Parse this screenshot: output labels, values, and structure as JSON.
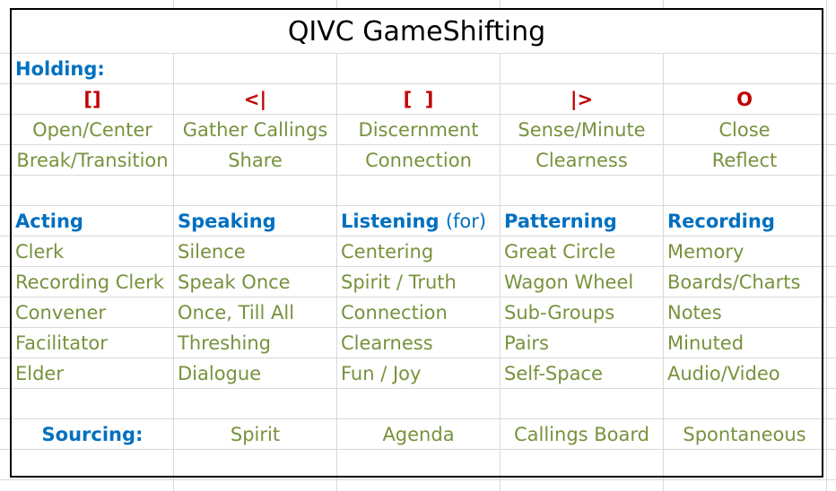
{
  "title": "QIVC GameShifting",
  "holding": {
    "label": "Holding:",
    "symbols": [
      "[]",
      "<|",
      "[  ]",
      "|>",
      "O"
    ],
    "row1": [
      "Open/Center",
      "Gather Callings",
      "Discernment",
      "Sense/Minute",
      "Close"
    ],
    "row2": [
      "Break/Transition",
      "Share",
      "Connection",
      "Clearness",
      "Reflect"
    ]
  },
  "categories": {
    "acting": "Acting",
    "speaking": "Speaking",
    "listening": "Listening",
    "listening_suffix": "(for)",
    "patterning": "Patterning",
    "recording": "Recording"
  },
  "rows": [
    [
      "Clerk",
      "Silence",
      "Centering",
      "Great Circle",
      "Memory"
    ],
    [
      "Recording Clerk",
      "Speak Once",
      "Spirit / Truth",
      "Wagon Wheel",
      "Boards/Charts"
    ],
    [
      "Convener",
      "Once, Till All",
      "Connection",
      "Sub-Groups",
      "Notes"
    ],
    [
      "Facilitator",
      "Threshing",
      "Clearness",
      "Pairs",
      "Minuted"
    ],
    [
      "Elder",
      "Dialogue",
      "Fun / Joy",
      "Self-Space",
      "Audio/Video"
    ]
  ],
  "sourcing": {
    "label": "Sourcing:",
    "items": [
      "Spirit",
      "Agenda",
      "Callings Board",
      "Spontaneous"
    ]
  },
  "colors": {
    "olive": "#77923c",
    "blue": "#0070c0",
    "red": "#c00000",
    "grid": "#d9d9d9"
  }
}
